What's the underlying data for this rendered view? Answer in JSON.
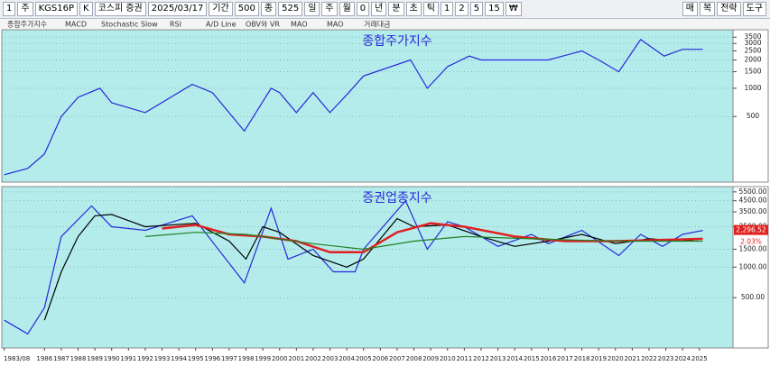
{
  "toolbar": {
    "items": [
      "1",
      "주",
      "KGS16P",
      "K",
      "코스피 증권",
      "2025/03/17",
      "기간",
      "500",
      "종",
      "525",
      "일",
      "주",
      "월",
      "0",
      "년",
      "분",
      "초",
      "틱",
      "1",
      "2",
      "5",
      "15",
      "₩"
    ],
    "right": [
      "매",
      "복",
      "전략",
      "도구"
    ]
  },
  "tabs": [
    "종합주가지수",
    "MACD",
    "Stochastic Slow",
    "RSI",
    "A/D Line",
    "OBV와 VR",
    "MAO",
    "MAO",
    "거래대금"
  ],
  "chart_data": [
    {
      "type": "line",
      "title": "종합주가지수",
      "log": true,
      "grid": true,
      "xlim": [
        1983.35,
        2027
      ],
      "ylim": [
        100,
        4200
      ],
      "yticks": [
        500,
        1000,
        1500,
        2000,
        2500,
        3000,
        3500
      ],
      "x": [
        1983.6,
        1985,
        1986,
        1987,
        1988,
        1989.3,
        1990,
        1992,
        1994.8,
        1996,
        1997.9,
        1999.5,
        2000,
        2001,
        2002,
        2003,
        2004,
        2005,
        2007.8,
        2008.8,
        2010,
        2011.3,
        2012,
        2014,
        2016,
        2018,
        2019,
        2020.2,
        2021.5,
        2022.9,
        2024,
        2025.2
      ],
      "series": [
        {
          "name": "종합주가지수",
          "color": "#2828d8",
          "values": [
            120,
            140,
            200,
            500,
            800,
            1000,
            700,
            550,
            1100,
            900,
            350,
            1000,
            900,
            550,
            900,
            550,
            850,
            1350,
            2000,
            1000,
            1700,
            2200,
            2000,
            2000,
            2000,
            2500,
            2000,
            1500,
            3300,
            2200,
            2600,
            2600
          ]
        }
      ]
    },
    {
      "type": "line",
      "title": "증권업종지수",
      "log": true,
      "grid": true,
      "xlim": [
        1983.35,
        2027
      ],
      "ylim": [
        160,
        6200
      ],
      "yticks": [
        {
          "value": 500,
          "label": "500.00"
        },
        {
          "value": 1000,
          "label": "1000.00"
        },
        {
          "value": 1500,
          "label": "1500.00"
        },
        {
          "value": 2500,
          "label": "2500.00"
        },
        {
          "value": 3500,
          "label": "3500.00"
        },
        {
          "value": 4500,
          "label": "4500.00"
        },
        {
          "value": 5500,
          "label": "5500.00"
        }
      ],
      "xticks": [
        {
          "value": 1983.6,
          "label": "1983/08"
        },
        1986,
        1987,
        1988,
        1989,
        1990,
        1991,
        1992,
        1993,
        1994,
        1995,
        1996,
        1997,
        1998,
        1999,
        2000,
        2001,
        2002,
        2003,
        2004,
        2005,
        2006,
        2007,
        2008,
        2009,
        2010,
        2011,
        2012,
        2013,
        2014,
        2015,
        2016,
        2017,
        2018,
        2019,
        2020,
        2021,
        2022,
        2023,
        2024,
        2025
      ],
      "price_tag": {
        "value": 2296.52,
        "label": "2,296.52"
      },
      "change": "2.03%",
      "series": [
        {
          "name": "증권업종지수",
          "color": "#2828d8",
          "x": [
            1983.6,
            1985,
            1986,
            1987,
            1988.8,
            1990,
            1992,
            1994.8,
            1997.9,
            1999.5,
            2000.5,
            2002,
            2003.2,
            2004.5,
            2005,
            2007.5,
            2008.8,
            2010,
            2011,
            2013,
            2015,
            2016,
            2018,
            2020.2,
            2021.5,
            2022.8,
            2024,
            2025.2
          ],
          "values": [
            300,
            220,
            400,
            2000,
            4000,
            2500,
            2300,
            3200,
            700,
            3800,
            1200,
            1500,
            900,
            900,
            1500,
            4500,
            1500,
            2800,
            2500,
            1600,
            2100,
            1700,
            2300,
            1300,
            2100,
            1600,
            2100,
            2296.52
          ]
        },
        {
          "color": "#000000",
          "x": [
            1986,
            1987,
            1988,
            1989,
            1990,
            1992,
            1995,
            1997,
            1998,
            1999,
            2000,
            2002,
            2004,
            2005,
            2007,
            2008,
            2010,
            2012,
            2014,
            2016,
            2018,
            2020,
            2022,
            2024,
            2025.2
          ],
          "values": [
            300,
            900,
            2000,
            3200,
            3300,
            2500,
            2700,
            1800,
            1200,
            2500,
            2200,
            1300,
            1000,
            1200,
            3000,
            2500,
            2600,
            2000,
            1600,
            1800,
            2100,
            1700,
            1900,
            1800,
            1900
          ]
        },
        {
          "color": "#e02020",
          "x": [
            1993,
            1995,
            1997,
            1999,
            2001,
            2003,
            2005,
            2007,
            2009,
            2011,
            2014,
            2017,
            2020,
            2025.2
          ],
          "values": [
            2400,
            2600,
            2100,
            2000,
            1800,
            1400,
            1400,
            2200,
            2700,
            2500,
            2000,
            1800,
            1800,
            1900
          ]
        },
        {
          "color": "#208020",
          "x": [
            1992,
            1995,
            1998,
            2002,
            2005,
            2008,
            2011,
            2015,
            2020,
            2025.2
          ],
          "values": [
            2000,
            2200,
            2100,
            1700,
            1500,
            1800,
            2000,
            1900,
            1800,
            1800
          ]
        }
      ]
    }
  ]
}
